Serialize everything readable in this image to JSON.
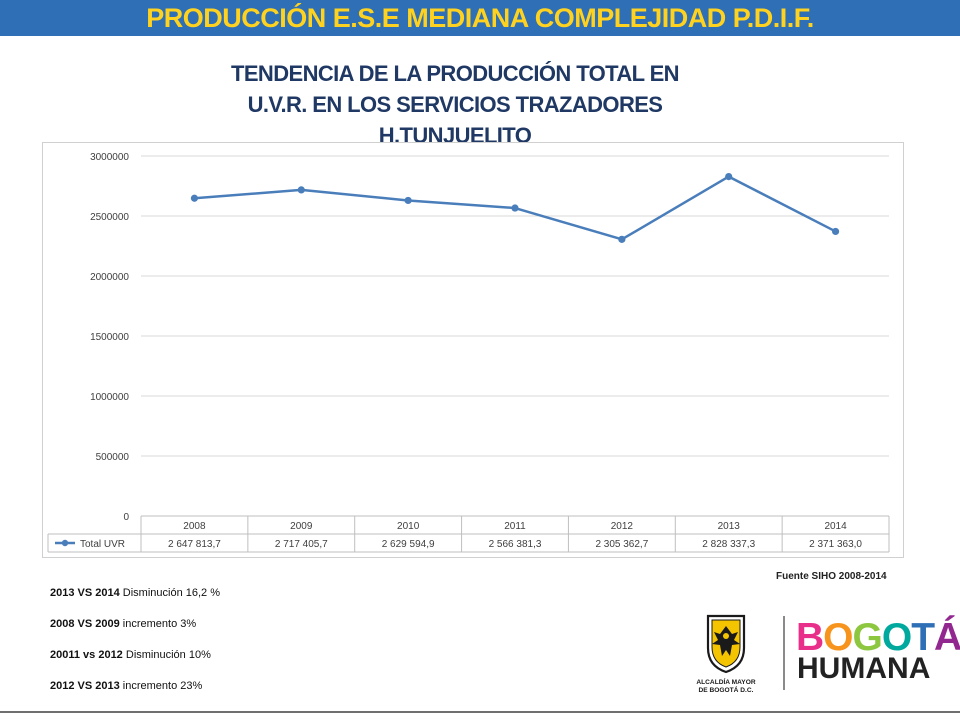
{
  "header": {
    "banner_title": "PRODUCCIÓN E.S.E MEDIANA COMPLEJIDAD P.D.I.F.",
    "banner_color": "#2e6fb5",
    "banner_text_color": "#ffd21f"
  },
  "chart_data": {
    "type": "line",
    "title_lines": [
      "TENDENCIA DE LA PRODUCCIÓN TOTAL EN",
      "U.V.R. EN LOS SERVICIOS TRAZADORES",
      "H.TUNJUELITO"
    ],
    "categories": [
      "2008",
      "2009",
      "2010",
      "2011",
      "2012",
      "2013",
      "2014"
    ],
    "series": [
      {
        "name": "Total UVR",
        "values": [
          2647813.7,
          2717405.7,
          2629594.9,
          2566381.3,
          2305362.7,
          2828337.3,
          2371363.0
        ],
        "value_labels": [
          "2 647 813,7",
          "2 717 405,7",
          "2 629 594,9",
          "2 566 381,3",
          "2 305 362,7",
          "2 828 337,3",
          "2 371 363,0"
        ],
        "color": "#4a7ebb"
      }
    ],
    "ylim": [
      0,
      3000000
    ],
    "yticks": [
      0,
      500000,
      1000000,
      1500000,
      2000000,
      2500000,
      3000000
    ],
    "ytick_labels": [
      "0",
      "500000",
      "1000000",
      "1500000",
      "2000000",
      "2500000",
      "3000000"
    ],
    "grid": true,
    "legend": "data-table-bottom",
    "title_color": "#1f3864"
  },
  "source": "Fuente SIHO 2008-2014",
  "notes": [
    {
      "bold": "2013 VS 2014",
      "text": "  Disminución 16,2 %"
    },
    {
      "bold": "2008 VS 2009",
      "text": " incremento  3%"
    },
    {
      "bold": "20011 vs 2012",
      "text": " Disminución  10%"
    },
    {
      "bold": "2012 VS 2013",
      "text": " incremento  23%"
    }
  ],
  "logos": {
    "alcaldia_lines": [
      "ALCALDÍA MAYOR",
      "DE BOGOTÁ D.C."
    ],
    "bogota_letters": [
      "B",
      "O",
      "G",
      "O",
      "T",
      "Á"
    ],
    "bogota_colors": [
      "#e8308a",
      "#f7941d",
      "#8dc63f",
      "#00a99d",
      "#2e6fb5",
      "#92278f"
    ],
    "humana_letters": [
      "H",
      "U",
      "M",
      "A",
      "N",
      "A"
    ],
    "humana_color": "#222222"
  }
}
